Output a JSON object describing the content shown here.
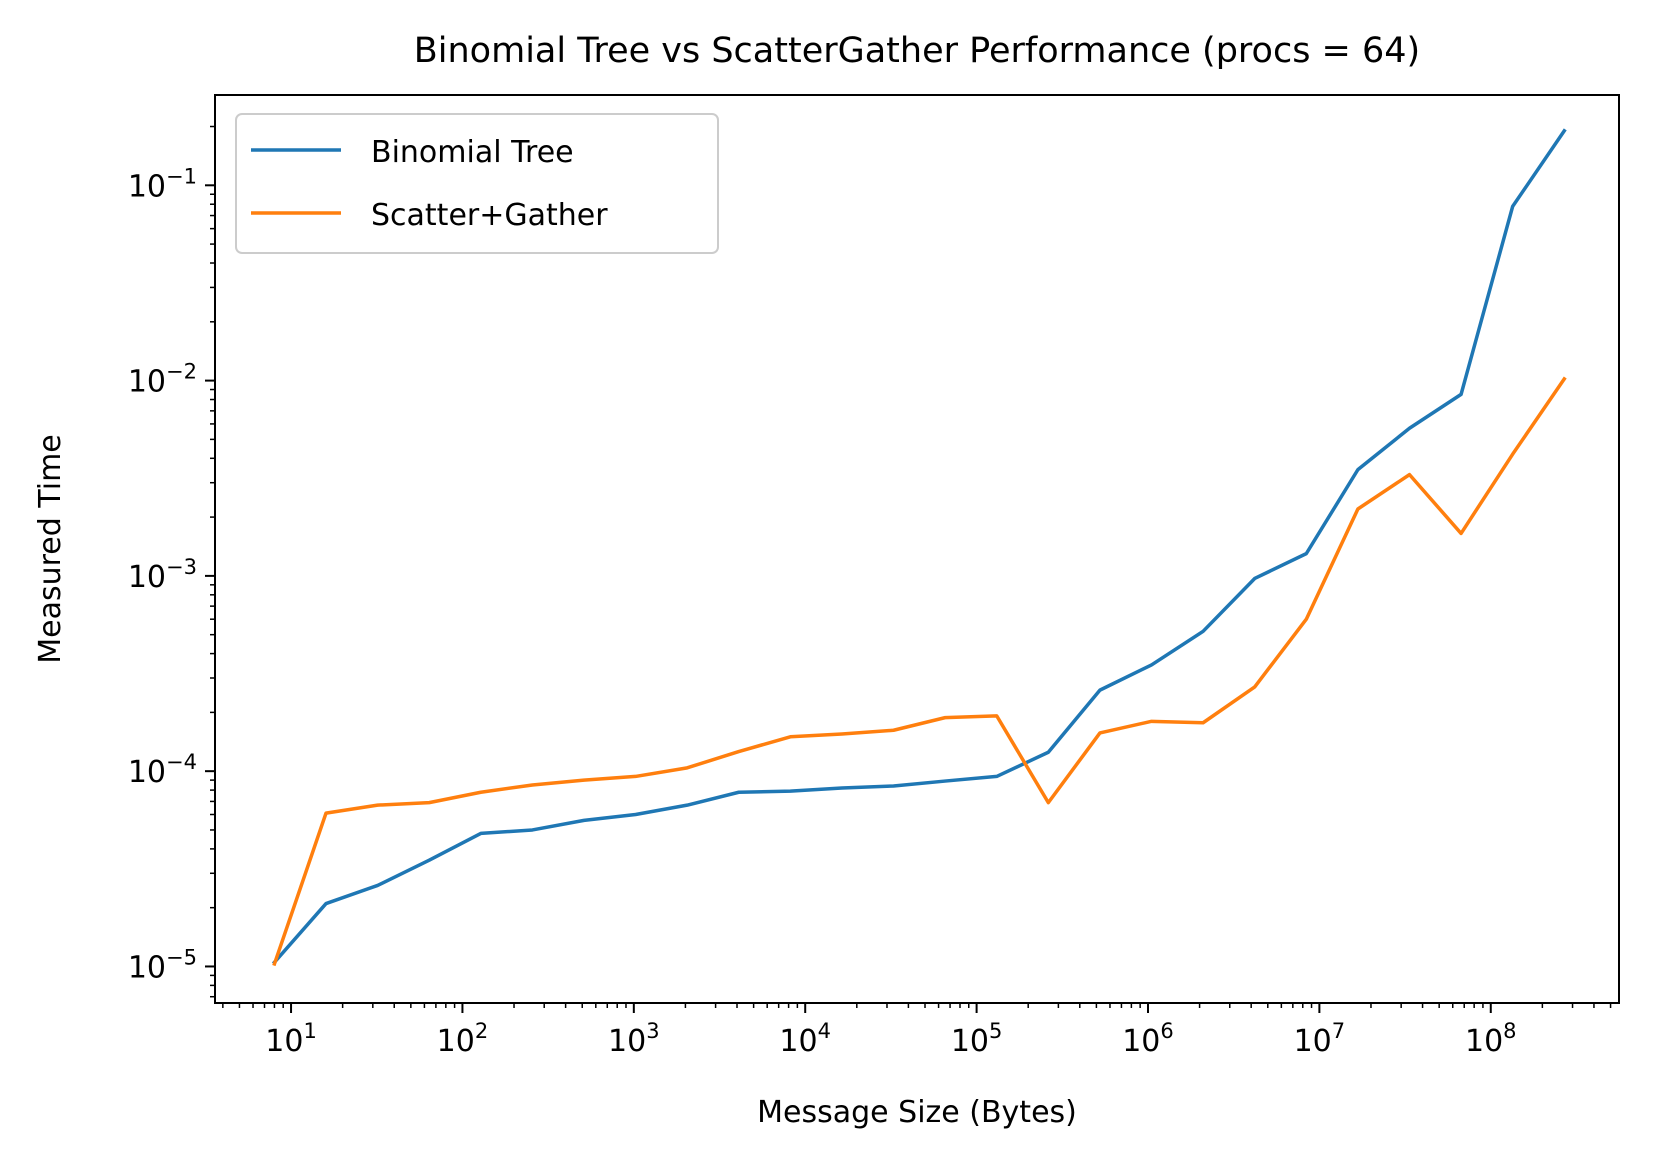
{
  "chart_data": {
    "type": "line",
    "title": "Binomial Tree vs ScatterGather Performance (procs = 64)",
    "xlabel": "Message Size (Bytes)",
    "ylabel": "Measured Time",
    "xscale": "log",
    "yscale": "log",
    "xlim": [
      3.6,
      560000000
    ],
    "ylim": [
      6.5e-06,
      0.29
    ],
    "x_ticks": [
      {
        "value": 10,
        "base": "10",
        "exp": "1"
      },
      {
        "value": 100,
        "base": "10",
        "exp": "2"
      },
      {
        "value": 1000,
        "base": "10",
        "exp": "3"
      },
      {
        "value": 10000,
        "base": "10",
        "exp": "4"
      },
      {
        "value": 100000,
        "base": "10",
        "exp": "5"
      },
      {
        "value": 1000000,
        "base": "10",
        "exp": "6"
      },
      {
        "value": 10000000,
        "base": "10",
        "exp": "7"
      },
      {
        "value": 100000000,
        "base": "10",
        "exp": "8"
      }
    ],
    "y_ticks": [
      {
        "value": 1e-05,
        "base": "10",
        "exp": "−5"
      },
      {
        "value": 0.0001,
        "base": "10",
        "exp": "−4"
      },
      {
        "value": 0.001,
        "base": "10",
        "exp": "−3"
      },
      {
        "value": 0.01,
        "base": "10",
        "exp": "−2"
      },
      {
        "value": 0.1,
        "base": "10",
        "exp": "−1"
      }
    ],
    "grid": false,
    "legend_position": "top-left",
    "x": [
      8,
      16,
      32,
      64,
      128,
      256,
      512,
      1024,
      2048,
      4096,
      8192,
      16384,
      32768,
      65536,
      131072,
      262144,
      524288,
      1048576,
      2097152,
      4194304,
      8388608,
      16777216,
      33554432,
      67108864,
      134217728,
      268435456
    ],
    "series": [
      {
        "name": "Binomial Tree",
        "color": "#1f77b4",
        "values": [
          1.05e-05,
          2.1e-05,
          2.6e-05,
          3.5e-05,
          4.8e-05,
          5e-05,
          5.6e-05,
          6e-05,
          6.7e-05,
          7.8e-05,
          7.9e-05,
          8.2e-05,
          8.4e-05,
          8.9e-05,
          9.4e-05,
          0.000125,
          0.00026,
          0.00035,
          0.00052,
          0.00097,
          0.0013,
          0.0035,
          0.0057,
          0.0085,
          0.078,
          0.19
        ]
      },
      {
        "name": "Scatter+Gather",
        "color": "#ff7f0e",
        "values": [
          1.03e-05,
          6.1e-05,
          6.7e-05,
          6.9e-05,
          7.8e-05,
          8.5e-05,
          9e-05,
          9.4e-05,
          0.000104,
          0.000126,
          0.00015,
          0.000155,
          0.000162,
          0.000188,
          0.000192,
          6.9e-05,
          0.000157,
          0.00018,
          0.000177,
          0.00027,
          0.0006,
          0.0022,
          0.0033,
          0.00165,
          0.0042,
          0.0102
        ]
      }
    ]
  }
}
